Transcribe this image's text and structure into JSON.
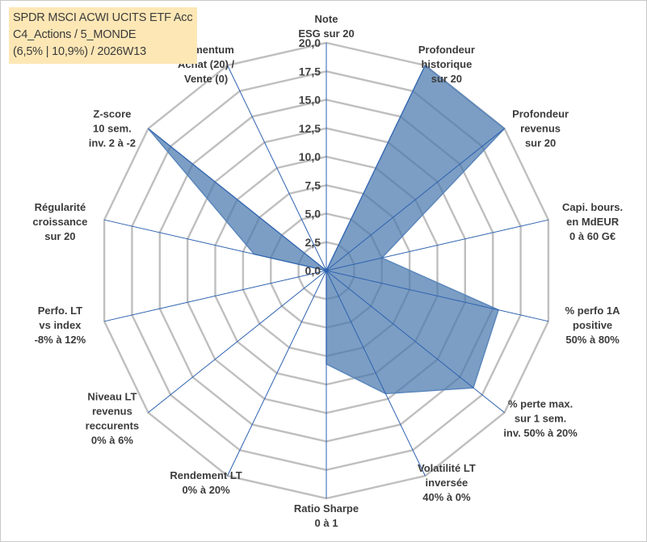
{
  "chart_data": {
    "type": "radar",
    "title": [
      "SPDR MSCI ACWI UCITS ETF Acc",
      "C4_Actions / 5_MONDE",
      "(6,5% | 10,9%) / 2026W13"
    ],
    "rmin": 0,
    "rmax": 20,
    "rings": [
      "0,0",
      "2,5",
      "5,0",
      "7,5",
      "10,0",
      "12,5",
      "15,0",
      "17,5",
      "20,0"
    ],
    "grid": true,
    "axes": [
      {
        "label": [
          "Note",
          "ESG sur 20"
        ],
        "value": 0
      },
      {
        "label": [
          "Profondeur",
          "historique",
          "sur 20"
        ],
        "value": 20
      },
      {
        "label": [
          "Profondeur",
          "revenus",
          "sur 20"
        ],
        "value": 20
      },
      {
        "label": [
          "Capi. bours.",
          "en MdEUR",
          "0 à 60 G€"
        ],
        "value": 5
      },
      {
        "label": [
          "% perfo 1A",
          "positive",
          "50% à 80%"
        ],
        "value": 15.5
      },
      {
        "label": [
          "% perte max.",
          "sur 1 sem.",
          "inv. 50% à 20%"
        ],
        "value": 16.5
      },
      {
        "label": [
          "Volatilité LT",
          "inversée",
          "40% à 0%"
        ],
        "value": 12
      },
      {
        "label": [
          "Ratio Sharpe",
          "0 à 1"
        ],
        "value": 8.2
      },
      {
        "label": [
          "Rendement LT",
          "0% à 20%"
        ],
        "value": 0
      },
      {
        "label": [
          "Niveau LT",
          "revenus",
          "reccurents",
          "0% à 6%"
        ],
        "value": 0
      },
      {
        "label": [
          "Perfo. LT",
          "vs index",
          "-8% à 12%"
        ],
        "value": 0
      },
      {
        "label": [
          "Régularité",
          "croissance",
          "sur 20"
        ],
        "value": 6.5
      },
      {
        "label": [
          "Z-score",
          "10 sem.",
          "inv. 2 à -2"
        ],
        "value": 20
      },
      {
        "label": [
          "Momentum",
          "Achat (20) /",
          "Vente (0)"
        ],
        "value": 0
      }
    ],
    "colors": {
      "fill": "#4a78ad",
      "stroke": "#5b87bd",
      "grid": "#bfbfbf",
      "spoke": "#2e62b0"
    }
  }
}
